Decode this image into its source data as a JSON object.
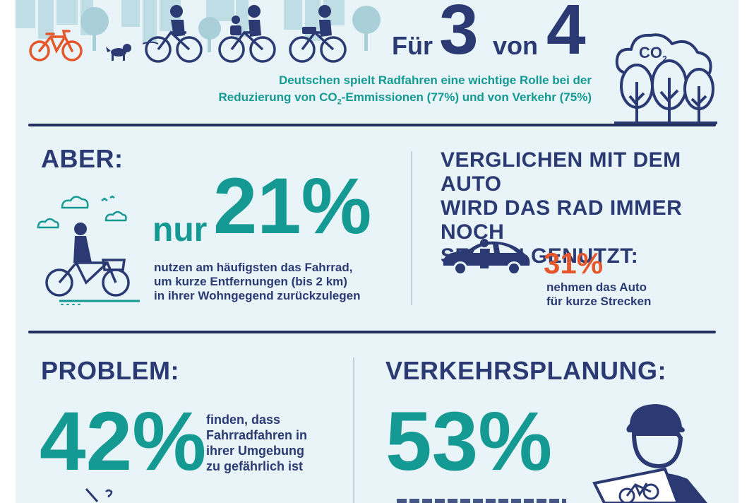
{
  "top": {
    "fuer": "Für",
    "num_a": "3",
    "von": "von",
    "num_b": "4",
    "line1": "Deutschen spielt Radfahren eine wichtige Rolle bei der",
    "line2_pre": "Reduzierung von CO",
    "line2_sub": "2",
    "line2_post": "-Emmissionen (77%) und von Verkehr (75%)",
    "co2_label": "CO",
    "co2_sub": "2"
  },
  "section_aber": {
    "heading": "ABER:",
    "nur": "nur",
    "percent": "21%",
    "line1": "nutzen am häufigsten das Fahrrad,",
    "line2": "um kurze Entfernungen (bis 2 km)",
    "line3": "in ihrer Wohngegend zurückzulegen"
  },
  "section_auto": {
    "heading1": "VERGLICHEN MIT DEM AUTO",
    "heading2": "WIRD DAS RAD IMMER NOCH",
    "heading3": "SELTEN GENUTZT:",
    "percent": "31%",
    "line1": "nehmen das Auto",
    "line2": "für kurze Strecken"
  },
  "section_problem": {
    "heading": "PROBLEM:",
    "percent": "42%",
    "line1": "finden, dass",
    "line2": "Fahrradfahren in",
    "line3": "ihrer Umgebung",
    "line4": "zu gefährlich ist"
  },
  "section_planung": {
    "heading": "VERKEHRSPLANUNG:",
    "percent": "53%"
  },
  "colors": {
    "navy": "#2b3a73",
    "teal": "#149a92",
    "orange": "#e5572b",
    "light_teal": "#a9d3dc",
    "background": "#e8f4f8"
  },
  "icons": [
    "city-skyline-icon",
    "bicycle-icon",
    "dog-icon",
    "cyclist-icon",
    "tree-icon",
    "co2-cloud-icon",
    "woman-cyclist-icon",
    "cloud-icon",
    "bird-icon",
    "car-icon",
    "helmet-person-icon",
    "bicycle-sign-icon"
  ]
}
